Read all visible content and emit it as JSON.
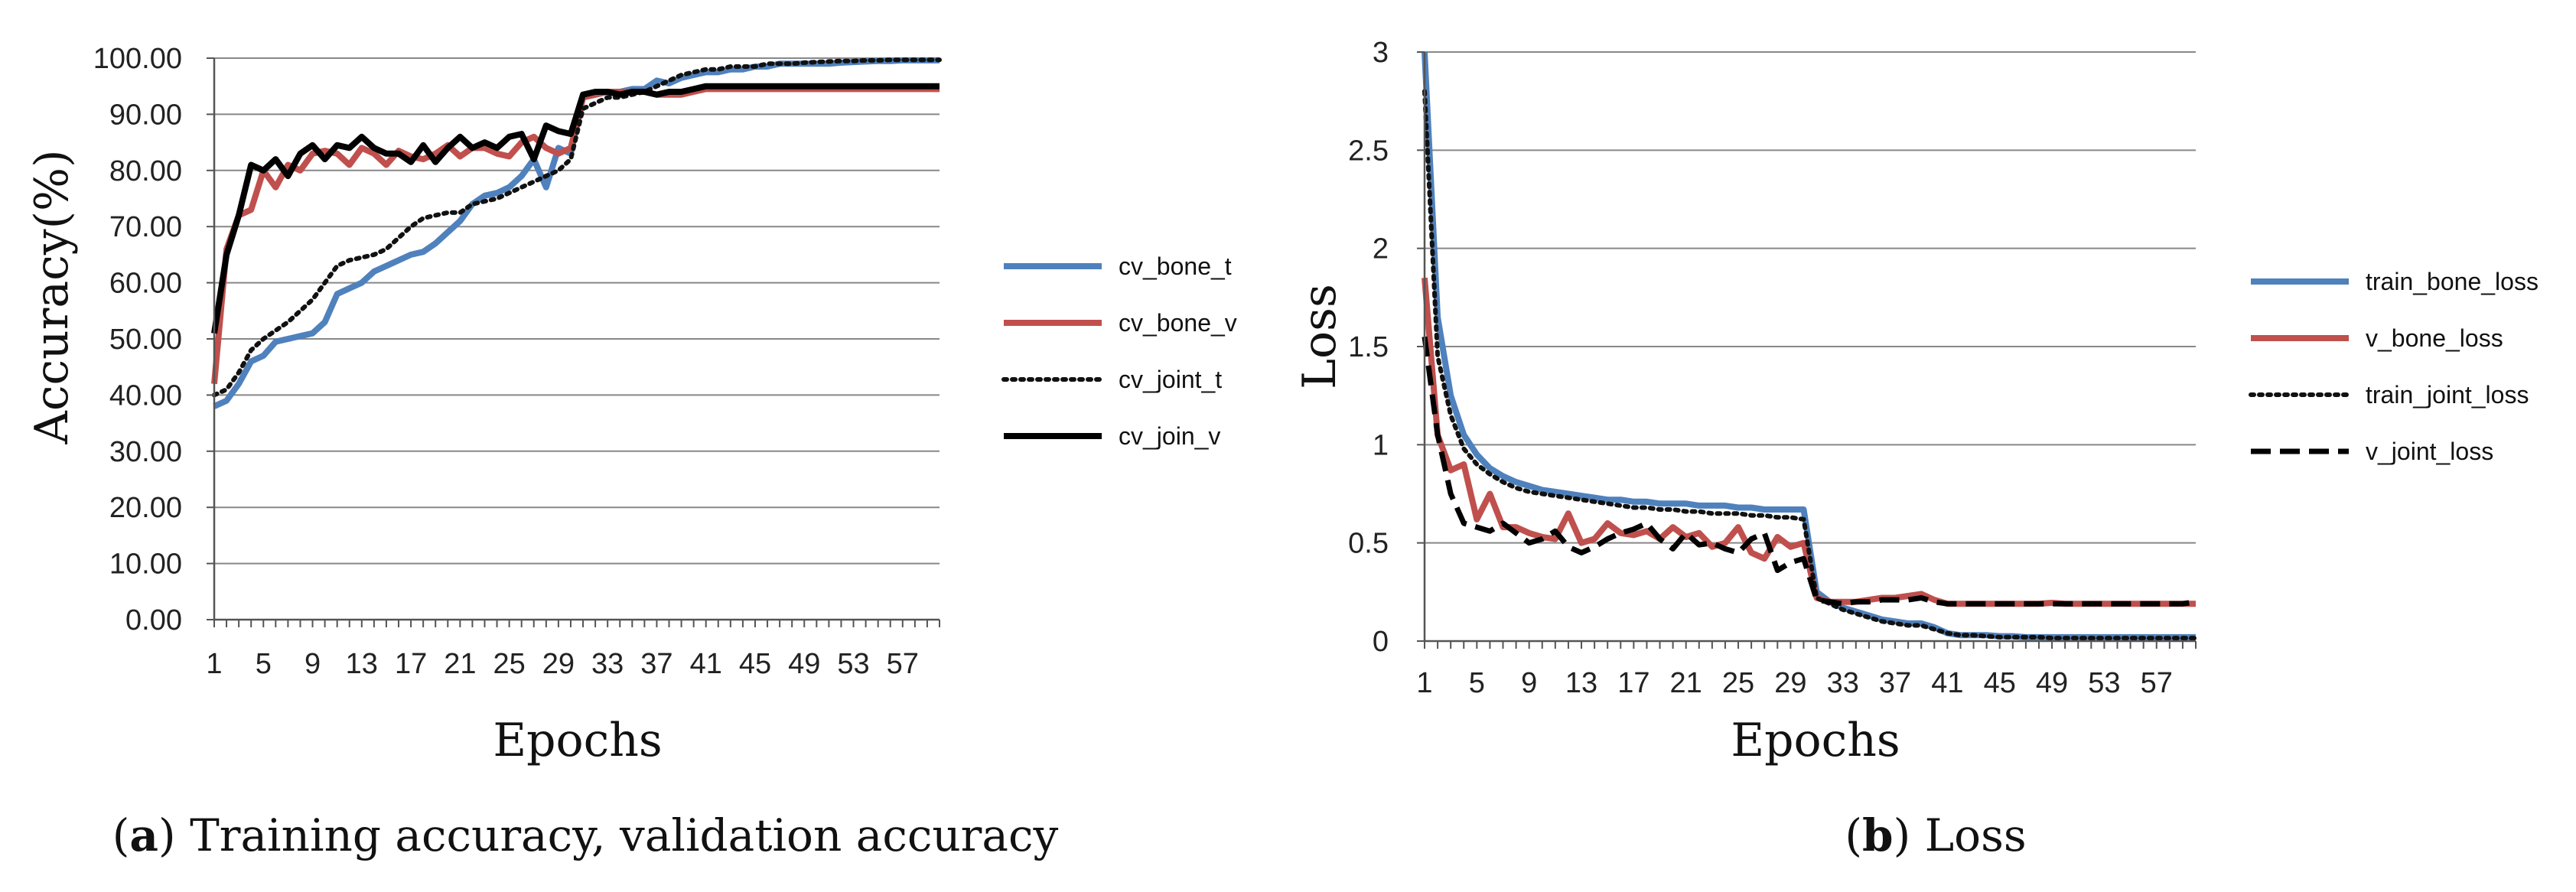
{
  "chart_data": [
    {
      "type": "line",
      "ylabel": "Accuracy(%)",
      "xlabel": "Epochs",
      "caption_letter": "a",
      "caption_text": "Training accuracy, validation accuracy",
      "ylim": [
        0,
        100
      ],
      "xlim": [
        1,
        60
      ],
      "y_ticks": [
        0,
        10,
        20,
        30,
        40,
        50,
        60,
        70,
        80,
        90,
        100
      ],
      "y_tick_labels": [
        "0.00",
        "10.00",
        "20.00",
        "30.00",
        "40.00",
        "50.00",
        "60.00",
        "70.00",
        "80.00",
        "90.00",
        "100.00"
      ],
      "x_ticks": [
        1,
        5,
        9,
        13,
        17,
        21,
        25,
        29,
        33,
        37,
        41,
        45,
        49,
        53,
        57
      ],
      "x_tick_labels": [
        "1",
        "5",
        "9",
        "13",
        "17",
        "21",
        "25",
        "29",
        "33",
        "37",
        "41",
        "45",
        "49",
        "53",
        "57"
      ],
      "grid": true,
      "legend_position": "right",
      "series": [
        {
          "name": "cv_bone_t",
          "color": "#4f81bd",
          "style": "solid",
          "values": [
            38,
            39,
            42,
            46,
            47,
            49.5,
            50,
            50.5,
            51,
            53,
            58,
            59,
            60,
            62,
            63,
            64,
            65,
            65.5,
            67,
            69,
            71,
            74,
            75.5,
            76,
            77,
            79,
            82,
            77,
            84,
            83,
            93,
            93.5,
            94,
            94,
            94.5,
            94.5,
            96,
            95.5,
            96.5,
            97,
            97.5,
            97.5,
            98,
            98,
            98.5,
            98.5,
            99,
            99,
            99,
            99,
            99,
            99.2,
            99.3,
            99.4,
            99.5,
            99.5,
            99.6,
            99.6,
            99.6,
            99.6
          ]
        },
        {
          "name": "cv_bone_v",
          "color": "#c0504d",
          "style": "solid",
          "values": [
            42,
            66,
            72,
            73,
            80,
            77,
            81,
            80,
            83,
            83.5,
            83,
            81,
            84,
            83,
            81,
            83.5,
            82.5,
            82,
            83,
            84.5,
            82.5,
            84,
            84,
            83,
            82.5,
            85,
            86,
            84,
            83,
            84,
            93,
            93.5,
            94,
            94,
            94,
            94,
            93.5,
            93.5,
            93.5,
            94,
            94.5,
            94.5,
            94.5,
            94.5,
            94.5,
            94.5,
            94.5,
            94.5,
            94.5,
            94.5,
            94.5,
            94.5,
            94.5,
            94.5,
            94.5,
            94.5,
            94.5,
            94.5,
            94.5,
            94.5
          ]
        },
        {
          "name": "cv_joint_t",
          "color": "#111111",
          "style": "dotted",
          "values": [
            40,
            41,
            44,
            48,
            50,
            51.5,
            53,
            55,
            57,
            60,
            63,
            64,
            64.5,
            65,
            66,
            68,
            70,
            71.5,
            72,
            72.5,
            72.5,
            74,
            74.5,
            75,
            76,
            77,
            78,
            79,
            80,
            82,
            91,
            92,
            93,
            93,
            93.5,
            94,
            95,
            96,
            97,
            97.5,
            98,
            98,
            98.5,
            98.5,
            98.5,
            99,
            99,
            99,
            99.2,
            99.3,
            99.4,
            99.5,
            99.5,
            99.6,
            99.6,
            99.7,
            99.7,
            99.7,
            99.7,
            99.7
          ]
        },
        {
          "name": "cv_join_v",
          "color": "#000000",
          "style": "solid",
          "values": [
            51,
            65,
            72,
            81,
            80,
            82,
            79,
            83,
            84.5,
            82,
            84.5,
            84,
            86,
            84,
            83,
            83,
            81.5,
            84.5,
            81.5,
            84,
            86,
            84,
            85,
            84,
            86,
            86.5,
            82,
            88,
            87,
            86.5,
            93.5,
            94,
            94,
            93.5,
            94,
            94,
            93.5,
            94,
            94,
            94.5,
            95,
            95,
            95,
            95,
            95,
            95,
            95,
            95,
            95,
            95,
            95,
            95,
            95,
            95,
            95,
            95,
            95,
            95,
            95,
            95
          ]
        }
      ]
    },
    {
      "type": "line",
      "ylabel": "Loss",
      "xlabel": "Epochs",
      "caption_letter": "b",
      "caption_text": "Loss",
      "ylim": [
        0,
        3
      ],
      "xlim": [
        1,
        60
      ],
      "y_ticks": [
        0,
        0.5,
        1,
        1.5,
        2,
        2.5,
        3
      ],
      "y_tick_labels": [
        "0",
        "0.5",
        "1",
        "1.5",
        "2",
        "2.5",
        "3"
      ],
      "x_ticks": [
        1,
        5,
        9,
        13,
        17,
        21,
        25,
        29,
        33,
        37,
        41,
        45,
        49,
        53,
        57
      ],
      "x_tick_labels": [
        "1",
        "5",
        "9",
        "13",
        "17",
        "21",
        "25",
        "29",
        "33",
        "37",
        "41",
        "45",
        "49",
        "53",
        "57"
      ],
      "grid": true,
      "legend_position": "right",
      "series": [
        {
          "name": "train_bone_loss",
          "color": "#4f81bd",
          "style": "solid",
          "values": [
            3.0,
            1.65,
            1.25,
            1.05,
            0.95,
            0.88,
            0.84,
            0.81,
            0.79,
            0.77,
            0.76,
            0.75,
            0.74,
            0.73,
            0.72,
            0.72,
            0.71,
            0.71,
            0.7,
            0.7,
            0.7,
            0.69,
            0.69,
            0.69,
            0.68,
            0.68,
            0.67,
            0.67,
            0.67,
            0.67,
            0.25,
            0.2,
            0.17,
            0.15,
            0.13,
            0.11,
            0.1,
            0.09,
            0.09,
            0.07,
            0.04,
            0.03,
            0.03,
            0.03,
            0.025,
            0.025,
            0.02,
            0.02,
            0.02,
            0.02,
            0.02,
            0.02,
            0.02,
            0.02,
            0.02,
            0.02,
            0.02,
            0.02,
            0.02,
            0.02
          ]
        },
        {
          "name": "v_bone_loss",
          "color": "#c0504d",
          "style": "solid",
          "values": [
            1.85,
            1.05,
            0.87,
            0.9,
            0.62,
            0.75,
            0.58,
            0.58,
            0.55,
            0.53,
            0.52,
            0.65,
            0.5,
            0.52,
            0.6,
            0.55,
            0.54,
            0.56,
            0.52,
            0.58,
            0.53,
            0.55,
            0.48,
            0.5,
            0.58,
            0.45,
            0.42,
            0.53,
            0.48,
            0.5,
            0.22,
            0.2,
            0.2,
            0.2,
            0.21,
            0.22,
            0.22,
            0.23,
            0.24,
            0.21,
            0.19,
            0.19,
            0.19,
            0.19,
            0.19,
            0.19,
            0.19,
            0.19,
            0.195,
            0.19,
            0.19,
            0.19,
            0.19,
            0.19,
            0.19,
            0.19,
            0.19,
            0.19,
            0.19,
            0.19
          ]
        },
        {
          "name": "train_joint_loss",
          "color": "#111111",
          "style": "dotted",
          "values": [
            2.8,
            1.45,
            1.15,
            0.98,
            0.9,
            0.85,
            0.81,
            0.78,
            0.76,
            0.75,
            0.74,
            0.73,
            0.72,
            0.71,
            0.7,
            0.69,
            0.68,
            0.68,
            0.67,
            0.67,
            0.66,
            0.66,
            0.65,
            0.65,
            0.65,
            0.64,
            0.64,
            0.63,
            0.63,
            0.62,
            0.22,
            0.19,
            0.16,
            0.14,
            0.12,
            0.1,
            0.09,
            0.08,
            0.08,
            0.06,
            0.04,
            0.03,
            0.03,
            0.025,
            0.02,
            0.02,
            0.02,
            0.02,
            0.015,
            0.015,
            0.015,
            0.015,
            0.015,
            0.015,
            0.015,
            0.015,
            0.015,
            0.015,
            0.015,
            0.015
          ]
        },
        {
          "name": "v_joint_loss",
          "color": "#000000",
          "style": "dashed",
          "values": [
            1.55,
            1.05,
            0.75,
            0.6,
            0.58,
            0.56,
            0.6,
            0.55,
            0.5,
            0.52,
            0.56,
            0.48,
            0.45,
            0.48,
            0.52,
            0.55,
            0.57,
            0.6,
            0.52,
            0.47,
            0.55,
            0.49,
            0.5,
            0.47,
            0.45,
            0.52,
            0.55,
            0.36,
            0.4,
            0.42,
            0.21,
            0.2,
            0.19,
            0.2,
            0.2,
            0.21,
            0.21,
            0.21,
            0.22,
            0.2,
            0.19,
            0.19,
            0.19,
            0.19,
            0.19,
            0.19,
            0.19,
            0.19,
            0.19,
            0.19,
            0.19,
            0.19,
            0.19,
            0.19,
            0.19,
            0.19,
            0.19,
            0.19,
            0.19,
            0.2
          ]
        }
      ]
    }
  ]
}
